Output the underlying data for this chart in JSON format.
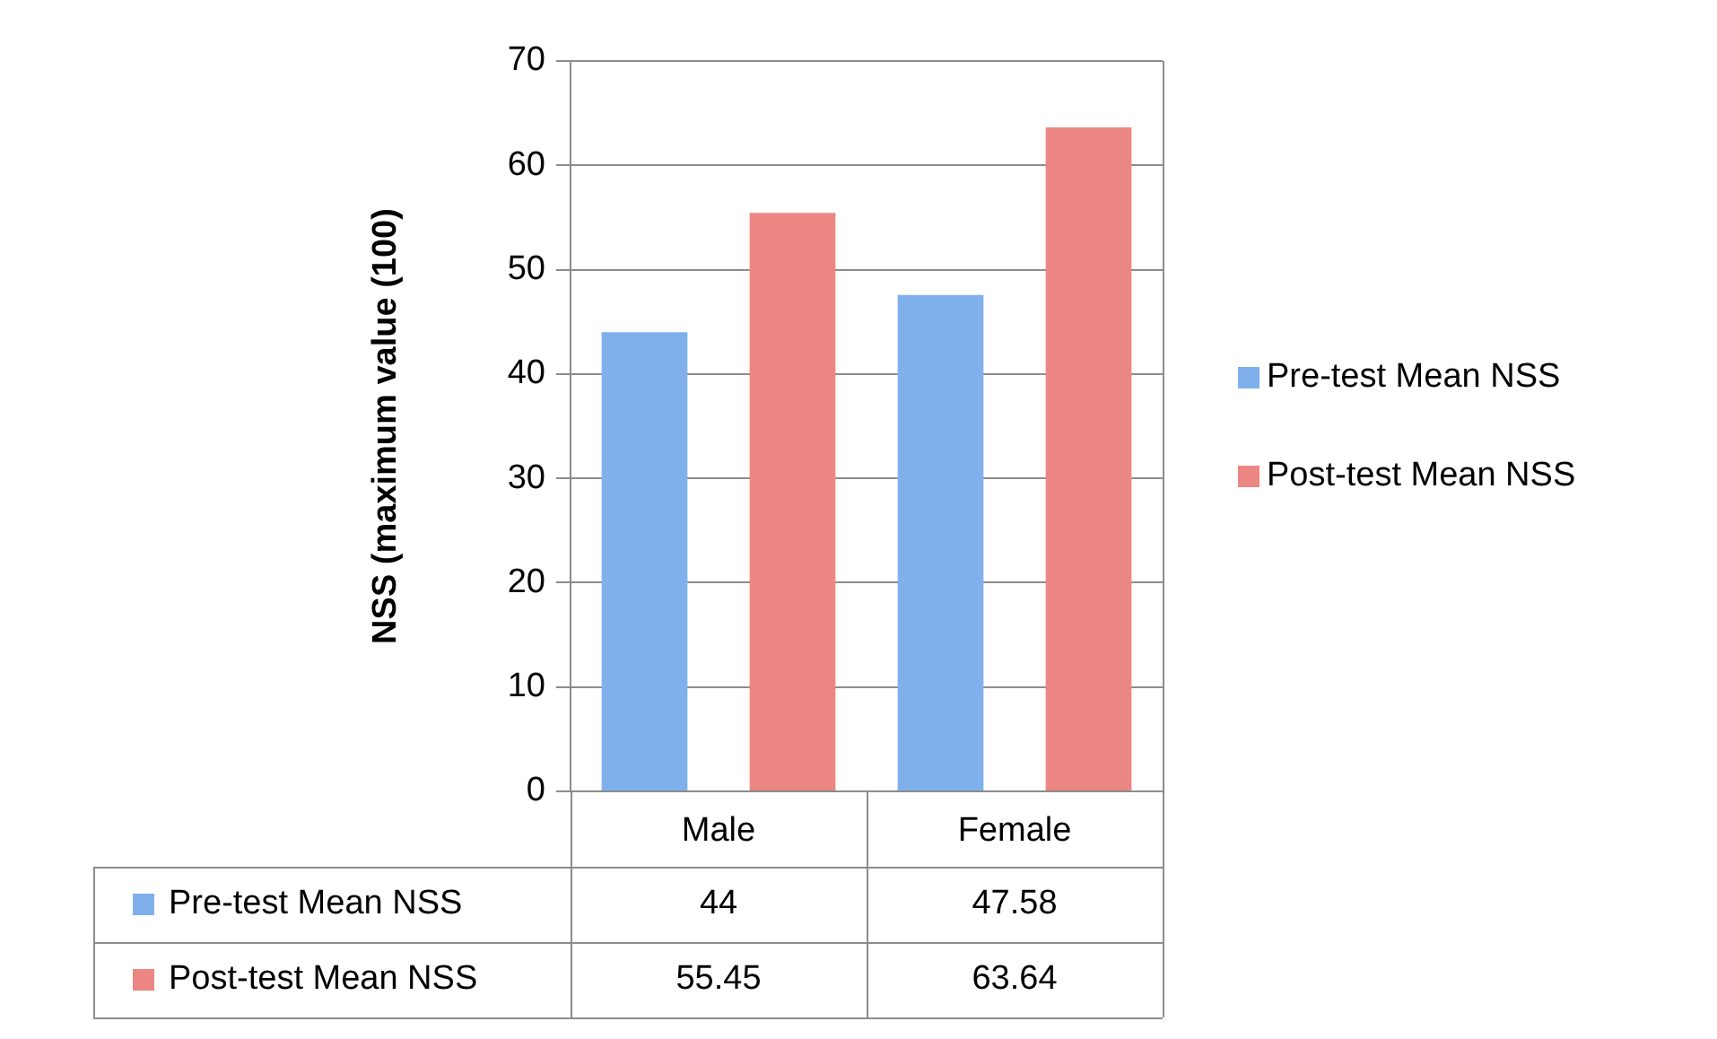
{
  "chart_data": {
    "type": "bar",
    "ylabel": "NSS (maximum value (100)",
    "categories": [
      "Male",
      "Female"
    ],
    "series": [
      {
        "name": "Pre-test Mean NSS",
        "color": "#7fb0ec",
        "values": [
          44,
          47.58
        ]
      },
      {
        "name": "Post-test Mean NSS",
        "color": "#ec8682",
        "values": [
          55.45,
          63.64
        ]
      }
    ],
    "ylim": [
      0,
      70
    ],
    "yticks": [
      0,
      10,
      20,
      30,
      40,
      50,
      60,
      70
    ],
    "grid": "y",
    "legend": "right",
    "data_labels": true
  }
}
